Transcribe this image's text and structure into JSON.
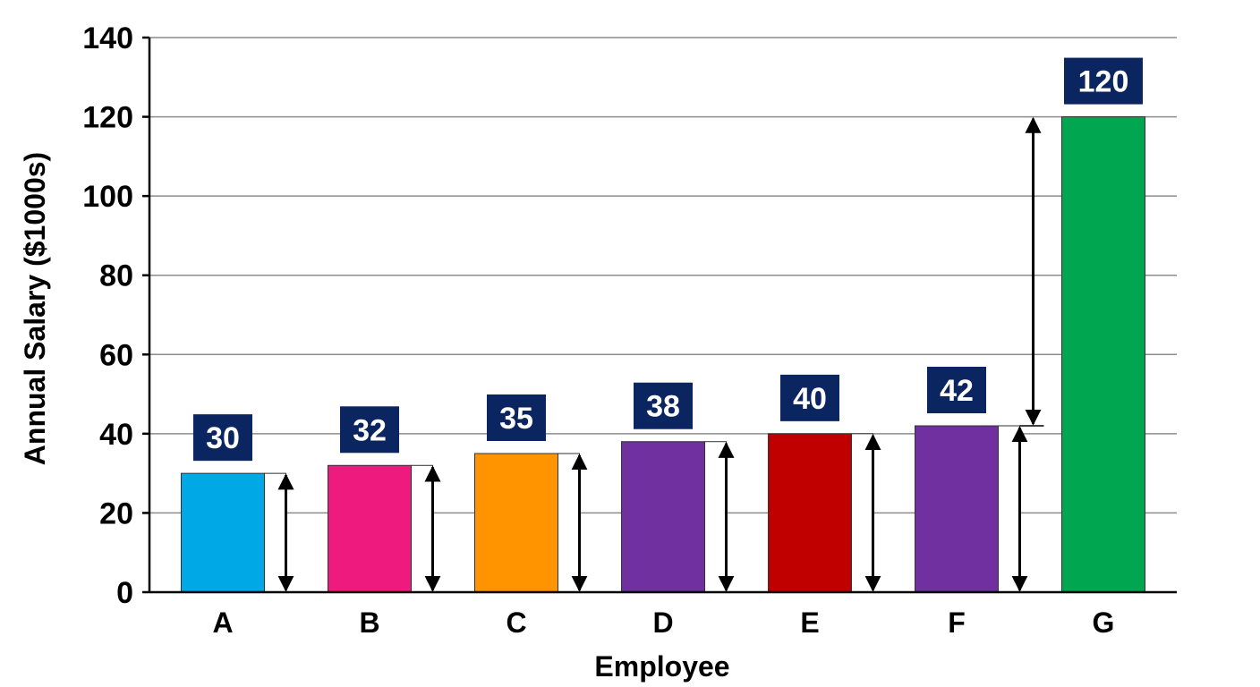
{
  "chart_data": {
    "type": "bar",
    "title": "",
    "xlabel": "Employee",
    "ylabel": "Annual Salary ($1000s)",
    "ylim": [
      0,
      140
    ],
    "yticks": [
      0,
      20,
      40,
      60,
      80,
      100,
      120,
      140
    ],
    "grid": true,
    "categories": [
      "A",
      "B",
      "C",
      "D",
      "E",
      "F",
      "G"
    ],
    "values": [
      30,
      32,
      35,
      38,
      40,
      42,
      120
    ],
    "data_labels": [
      "30",
      "32",
      "35",
      "38",
      "40",
      "42",
      "120"
    ],
    "colors": [
      "#00a9e6",
      "#ee1a7e",
      "#ff9400",
      "#7030a0",
      "#c00000",
      "#7030a0",
      "#00a650"
    ],
    "label_box_color": "#0b2560",
    "annotations": "double-headed arrows beside each bar spanning from 0 to the bar value; a longer arrow spans from F's value to G's value"
  }
}
